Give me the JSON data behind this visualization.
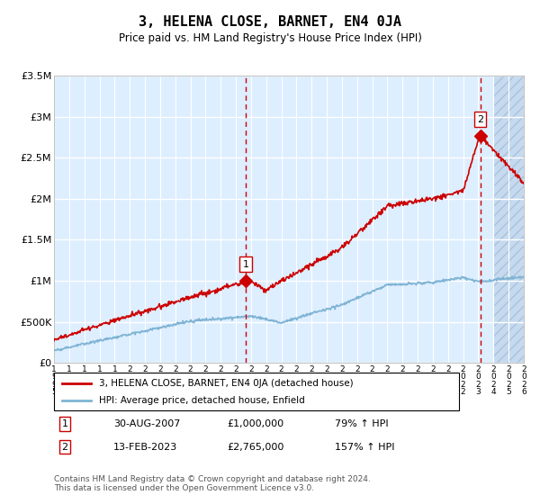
{
  "title": "3, HELENA CLOSE, BARNET, EN4 0JA",
  "subtitle": "Price paid vs. HM Land Registry's House Price Index (HPI)",
  "footer": "Contains HM Land Registry data © Crown copyright and database right 2024.\nThis data is licensed under the Open Government Licence v3.0.",
  "legend_red": "3, HELENA CLOSE, BARNET, EN4 0JA (detached house)",
  "legend_blue": "HPI: Average price, detached house, Enfield",
  "annotation1_label": "1",
  "annotation1_date": "30-AUG-2007",
  "annotation1_price": "£1,000,000",
  "annotation1_hpi": "79% ↑ HPI",
  "annotation2_label": "2",
  "annotation2_date": "13-FEB-2023",
  "annotation2_price": "£2,765,000",
  "annotation2_hpi": "157% ↑ HPI",
  "year_start": 1995,
  "year_end": 2026,
  "ylim": [
    0,
    3500000
  ],
  "yticks": [
    0,
    500000,
    1000000,
    1500000,
    2000000,
    2500000,
    3000000,
    3500000
  ],
  "ytick_labels": [
    "£0",
    "£500K",
    "£1M",
    "£1.5M",
    "£2M",
    "£2.5M",
    "£3M",
    "£3.5M"
  ],
  "red_color": "#cc0000",
  "blue_color": "#7fb4d4",
  "bg_color": "#ddeeff",
  "hatch_color": "#b0c8e0",
  "grid_color": "#ffffff",
  "dashed_color": "#cc0000",
  "sale1_year": 2007.66,
  "sale1_price": 1000000,
  "sale2_year": 2023.12,
  "sale2_price": 2765000
}
